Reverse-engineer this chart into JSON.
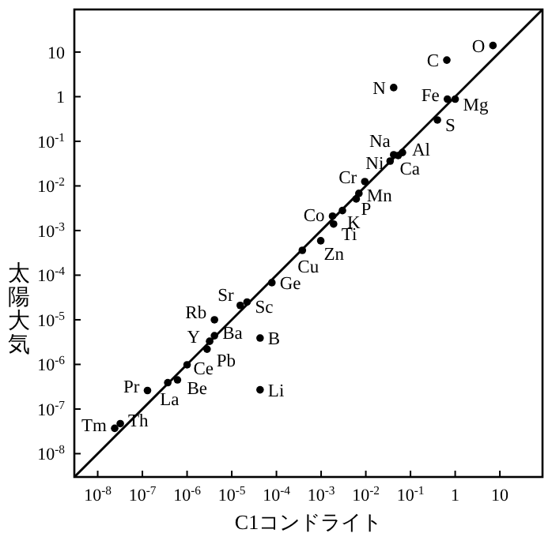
{
  "chart_data": {
    "type": "scatter",
    "xlabel": "C1コンドライト",
    "ylabel": "太陽大気",
    "log": "xy",
    "xlim": [
      3e-09,
      90
    ],
    "ylim": [
      3e-09,
      90
    ],
    "xticks": [
      {
        "value": 1e-08,
        "label": "10$^{-8}$"
      },
      {
        "value": 1e-07,
        "label": "10$^{-7}$"
      },
      {
        "value": 1e-06,
        "label": "10$^{-6}$"
      },
      {
        "value": 1e-05,
        "label": "10$^{-5}$"
      },
      {
        "value": 0.0001,
        "label": "10$^{-4}$"
      },
      {
        "value": 0.001,
        "label": "10$^{-3}$"
      },
      {
        "value": 0.01,
        "label": "10$^{-2}$"
      },
      {
        "value": 0.1,
        "label": "10$^{-1}$"
      },
      1,
      10
    ],
    "yticks": [
      {
        "value": 1e-08,
        "label": "10$^{-8}$"
      },
      {
        "value": 1e-07,
        "label": "10$^{-7}$"
      },
      {
        "value": 1e-06,
        "label": "10$^{-6}$"
      },
      {
        "value": 1e-05,
        "label": "10$^{-5}$"
      },
      {
        "value": 0.0001,
        "label": "10$^{-4}$"
      },
      {
        "value": 0.001,
        "label": "10$^{-3}$"
      },
      {
        "value": 0.01,
        "label": "10$^{-2}$"
      },
      {
        "value": 0.1,
        "label": "10$^{-1}$"
      },
      1,
      10
    ],
    "series": [
      {
        "type": "scatter",
        "color": "#000000",
        "marker": "circle",
        "x": [
          7,
          0.65,
          0.042,
          0.67,
          1,
          0.4,
          0.042,
          0.066,
          0.035,
          0.053,
          0.0095,
          0.007,
          0.0061,
          0.003,
          0.0018,
          0.0019,
          0.00098,
          0.00038,
          7.9e-05,
          2.2e-05,
          1.55e-05,
          4.1e-06,
          4.1e-06,
          3.2e-06,
          2.8e-06,
          4.3e-05,
          1e-06,
          6.1e-07,
          3.7e-07,
          4.3e-05,
          1.3e-07,
          3.2e-08,
          2.4e-08
        ],
        "values": [
          14,
          6.6,
          1.6,
          0.88,
          0.88,
          0.3,
          0.05,
          0.056,
          0.036,
          0.048,
          0.0125,
          0.0068,
          0.0051,
          0.0028,
          0.0021,
          0.0014,
          0.00059,
          0.00036,
          6.8e-05,
          2.5e-05,
          2.1e-05,
          1e-05,
          4.4e-06,
          3.3e-06,
          2.2e-06,
          3.9e-06,
          9.8e-07,
          4.5e-07,
          3.9e-07,
          2.7e-07,
          2.6e-07,
          4.7e-08,
          3.7e-08
        ]
      },
      {
        "type": "line",
        "color": "#000000",
        "marker": "none",
        "line_style": "solid",
        "x": [
          3e-09,
          90
        ],
        "values": [
          3e-09,
          90
        ]
      }
    ],
    "annotations": [
      {
        "text": "O",
        "x": 7,
        "y": 14
      },
      {
        "text": "C",
        "x": 0.65,
        "y": 6.6
      },
      {
        "text": "N",
        "x": 0.042,
        "y": 1.6
      },
      {
        "text": "Fe",
        "x": 0.67,
        "y": 0.88
      },
      {
        "text": "Mg",
        "x": 1,
        "y": 0.88
      },
      {
        "text": "S",
        "x": 0.4,
        "y": 0.3
      },
      {
        "text": "Na",
        "x": 0.042,
        "y": 0.05
      },
      {
        "text": "Al",
        "x": 0.066,
        "y": 0.056
      },
      {
        "text": "Ni",
        "x": 0.035,
        "y": 0.036
      },
      {
        "text": "Ca",
        "x": 0.053,
        "y": 0.048
      },
      {
        "text": "Cr",
        "x": 0.0095,
        "y": 0.0125
      },
      {
        "text": "Mn",
        "x": 0.007,
        "y": 0.0068
      },
      {
        "text": "P",
        "x": 0.0061,
        "y": 0.0051
      },
      {
        "text": "K",
        "x": 0.003,
        "y": 0.0028
      },
      {
        "text": "Co",
        "x": 0.0018,
        "y": 0.0021
      },
      {
        "text": "Ti",
        "x": 0.0019,
        "y": 0.0014
      },
      {
        "text": "Zn",
        "x": 0.00098,
        "y": 0.00059
      },
      {
        "text": "Cu",
        "x": 0.00038,
        "y": 0.00036
      },
      {
        "text": "Ge",
        "x": 7.9e-05,
        "y": 6.8e-05
      },
      {
        "text": "Sc",
        "x": 2.2e-05,
        "y": 2.5e-05
      },
      {
        "text": "Sr",
        "x": 1.55e-05,
        "y": 2.1e-05
      },
      {
        "text": "Rb",
        "x": 4.1e-06,
        "y": 1e-05
      },
      {
        "text": "Ba",
        "x": 4.1e-06,
        "y": 4.4e-06
      },
      {
        "text": "Y",
        "x": 3.2e-06,
        "y": 3.3e-06
      },
      {
        "text": "Pb",
        "x": 2.8e-06,
        "y": 2.2e-06
      },
      {
        "text": "B",
        "x": 4.3e-05,
        "y": 3.9e-06
      },
      {
        "text": "Ce",
        "x": 1e-06,
        "y": 9.8e-07
      },
      {
        "text": "Be",
        "x": 6.1e-07,
        "y": 4.5e-07
      },
      {
        "text": "La",
        "x": 3.7e-07,
        "y": 3.9e-07
      },
      {
        "text": "Li",
        "x": 4.3e-05,
        "y": 2.7e-07
      },
      {
        "text": "Pr",
        "x": 1.3e-07,
        "y": 2.6e-07
      },
      {
        "text": "Th",
        "x": 3.2e-08,
        "y": 4.7e-08
      },
      {
        "text": "Tm",
        "x": 2.4e-08,
        "y": 3.7e-08
      }
    ]
  }
}
